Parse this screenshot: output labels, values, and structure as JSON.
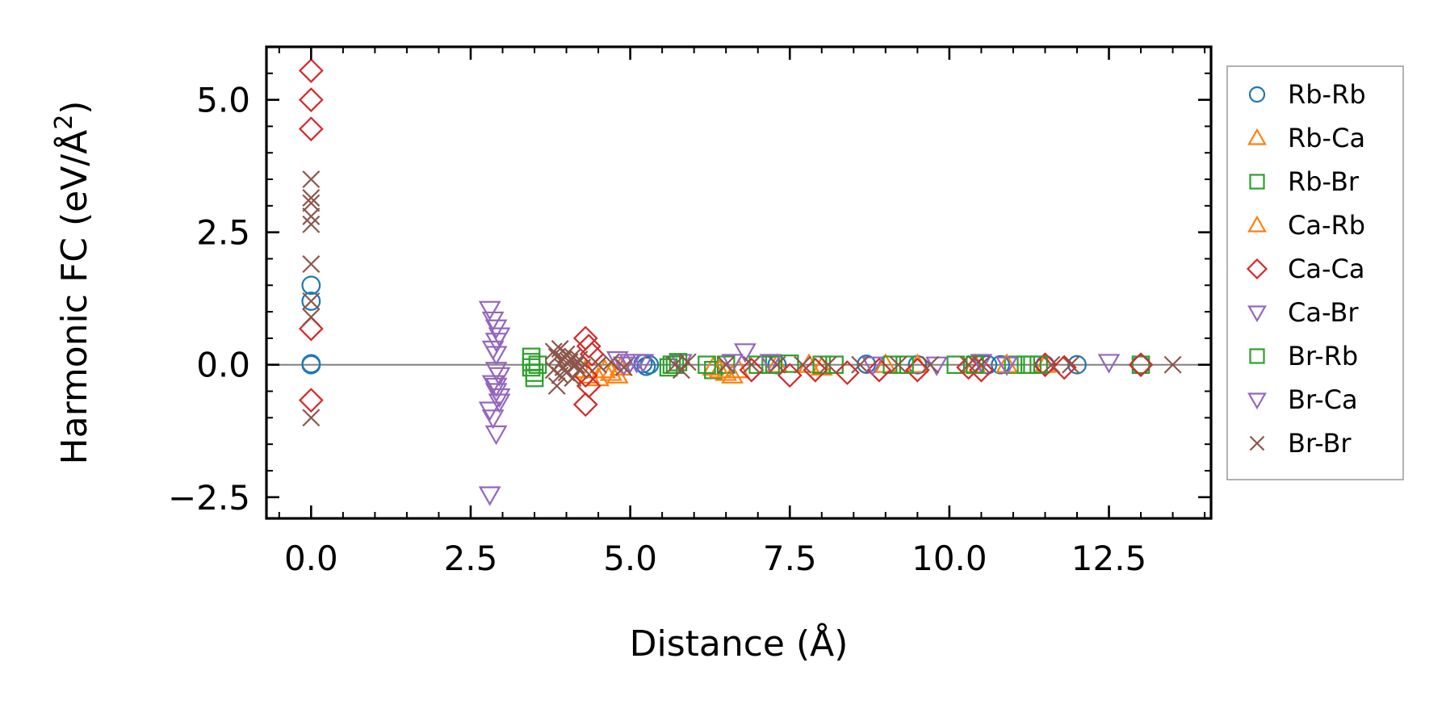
{
  "chart_data": {
    "type": "scatter",
    "title": "",
    "xlabel": "Distance (Å)",
    "ylabel_prefix": "Harmonic FC (eV/Å",
    "ylabel_exp": "2",
    "ylabel_suffix": ")",
    "xlim": [
      -0.7,
      14.1
    ],
    "ylim": [
      -2.9,
      6.0
    ],
    "xticks": [
      0.0,
      2.5,
      5.0,
      7.5,
      10.0,
      12.5
    ],
    "xtick_labels": [
      "0.0",
      "2.5",
      "5.0",
      "7.5",
      "10.0",
      "12.5"
    ],
    "yticks": [
      -2.5,
      0.0,
      2.5,
      5.0
    ],
    "ytick_labels": [
      "−2.5",
      "0.0",
      "2.5",
      "5.0"
    ],
    "zero_line": 0.0,
    "legend_position": "right",
    "series": [
      {
        "name": "Rb-Rb",
        "marker": "circle",
        "color": "#1f77b4",
        "x": [
          0.0,
          0.0,
          0.0,
          0.0,
          5.2,
          5.25,
          5.3,
          7.3,
          8.7,
          9.5,
          10.6,
          10.8,
          11.5,
          12.0,
          13.0
        ],
        "y": [
          1.5,
          1.2,
          0.0,
          0.02,
          0.02,
          -0.03,
          0.0,
          0.0,
          0.01,
          0.0,
          0.0,
          0.0,
          0.0,
          0.0,
          0.0
        ]
      },
      {
        "name": "Rb-Ca",
        "marker": "triangle-up",
        "color": "#ff7f0e",
        "x": [
          4.3,
          4.5,
          4.7,
          4.8,
          6.3,
          6.5,
          6.6,
          7.3,
          8.0,
          9.0,
          10.4,
          11.5
        ],
        "y": [
          -0.1,
          -0.25,
          -0.15,
          -0.2,
          -0.05,
          -0.15,
          -0.2,
          0.0,
          -0.05,
          0.0,
          0.0,
          0.0
        ]
      },
      {
        "name": "Rb-Br",
        "marker": "square",
        "color": "#2ca02c",
        "x": [
          3.45,
          3.45,
          3.45,
          3.5,
          3.5,
          5.6,
          5.7,
          6.3,
          6.5,
          7.0,
          7.5,
          8.2,
          9.1,
          10.1,
          11.0,
          11.3,
          13.0
        ],
        "y": [
          0.15,
          0.05,
          -0.05,
          -0.15,
          -0.25,
          -0.05,
          0.0,
          -0.1,
          0.0,
          0.0,
          0.02,
          0.0,
          0.0,
          0.0,
          0.0,
          0.0,
          0.0
        ]
      },
      {
        "name": "Ca-Rb",
        "marker": "triangle-up",
        "color": "#ff7f0e",
        "x": [
          4.35,
          4.6,
          4.85,
          6.4,
          6.7,
          7.8,
          9.5,
          10.9
        ],
        "y": [
          -0.2,
          -0.1,
          -0.05,
          -0.1,
          -0.1,
          0.0,
          0.0,
          0.0
        ]
      },
      {
        "name": "Ca-Ca",
        "marker": "diamond",
        "color": "#d62728",
        "x": [
          0.0,
          0.0,
          0.0,
          0.0,
          0.0,
          4.3,
          4.35,
          4.4,
          4.3,
          4.35,
          4.3,
          6.9,
          7.5,
          7.9,
          8.4,
          8.9,
          9.5,
          10.3,
          10.5,
          11.5,
          11.8,
          13.0
        ],
        "y": [
          5.55,
          5.0,
          4.45,
          0.68,
          -0.67,
          0.5,
          0.35,
          0.2,
          -0.2,
          -0.4,
          -0.75,
          -0.1,
          -0.2,
          -0.1,
          -0.15,
          -0.1,
          -0.1,
          -0.05,
          -0.1,
          0.0,
          -0.05,
          0.0
        ]
      },
      {
        "name": "Ca-Br",
        "marker": "triangle-down",
        "color": "#9467bd",
        "x": [
          2.8,
          2.85,
          2.9,
          2.95,
          2.9,
          2.85,
          2.9,
          2.95,
          2.85,
          2.9,
          2.95,
          2.8,
          2.85,
          2.9,
          2.8,
          4.8,
          5.0,
          5.2,
          5.8,
          6.8,
          8.8,
          10.5,
          12.5
        ],
        "y": [
          1.05,
          0.85,
          0.7,
          0.55,
          0.45,
          0.3,
          0.2,
          -0.2,
          -0.35,
          -0.5,
          -0.7,
          -0.85,
          -1.0,
          -1.3,
          -2.45,
          0.1,
          0.05,
          0.05,
          0.05,
          0.25,
          0.0,
          0.05,
          0.05
        ]
      },
      {
        "name": "Br-Rb",
        "marker": "square",
        "color": "#2ca02c",
        "x": [
          3.55,
          5.65,
          5.75,
          6.2,
          7.2,
          8.0,
          9.3,
          10.4,
          11.2,
          11.4
        ],
        "y": [
          0.0,
          0.0,
          0.05,
          0.0,
          0.0,
          0.0,
          0.0,
          0.0,
          0.0,
          0.0
        ]
      },
      {
        "name": "Br-Ca",
        "marker": "triangle-down",
        "color": "#9467bd",
        "x": [
          2.9,
          2.95,
          2.9,
          4.9,
          5.1,
          6.6,
          7.2,
          9.8,
          10.9
        ],
        "y": [
          -0.1,
          -0.6,
          -0.4,
          0.0,
          0.05,
          0.05,
          0.05,
          0.0,
          0.0
        ]
      },
      {
        "name": "Br-Br",
        "marker": "x",
        "color": "#8c564b",
        "x": [
          0.0,
          0.0,
          0.0,
          0.0,
          0.0,
          0.0,
          0.0,
          0.0,
          0.0,
          3.8,
          3.85,
          3.9,
          3.95,
          4.0,
          4.05,
          4.1,
          4.15,
          4.2,
          4.25,
          3.8,
          3.9,
          4.0,
          4.1,
          4.2,
          3.85,
          3.95,
          4.05,
          4.5,
          4.7,
          4.9,
          5.7,
          5.8,
          5.9,
          6.5,
          6.9,
          7.3,
          7.7,
          8.1,
          8.6,
          9.2,
          9.7,
          10.3,
          10.5,
          11.6,
          11.9,
          13.5
        ],
        "y": [
          3.5,
          3.15,
          3.05,
          2.8,
          2.65,
          1.9,
          1.2,
          0.9,
          -1.0,
          0.25,
          0.15,
          0.3,
          0.1,
          0.2,
          0.05,
          0.15,
          0.0,
          0.1,
          -0.05,
          -0.1,
          -0.2,
          -0.15,
          -0.25,
          -0.1,
          -0.4,
          -0.05,
          0.05,
          0.0,
          0.05,
          -0.05,
          0.0,
          -0.1,
          0.05,
          0.0,
          0.0,
          0.0,
          0.0,
          0.0,
          0.0,
          0.0,
          0.0,
          0.0,
          0.0,
          0.0,
          0.0,
          0.0
        ]
      }
    ]
  }
}
